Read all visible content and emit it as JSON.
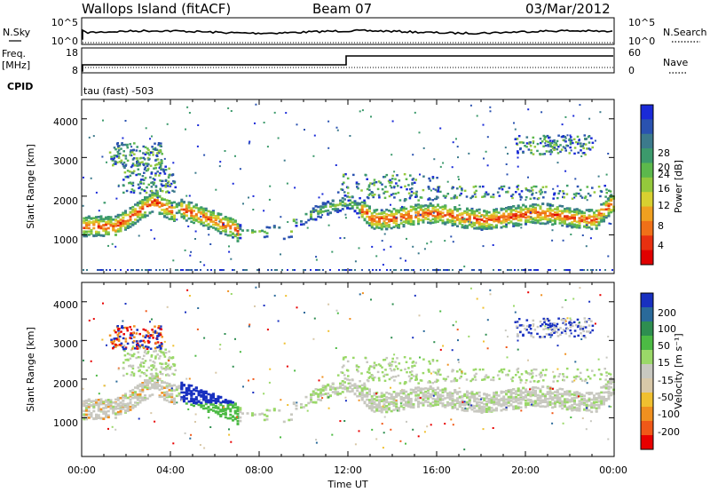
{
  "header": {
    "station": "Wallops Island (fitACF)",
    "beam": "Beam 07",
    "date": "03/Mar/2012"
  },
  "strips": {
    "nsky_label": "N.Sky",
    "nsearch_label": "N.Search",
    "nsky_ticks": [
      "10^5",
      "10^0"
    ],
    "nsearch_ticks": [
      "10^5",
      "10^0"
    ],
    "freq_label": "Freq.",
    "freq_unit": "[MHz]",
    "freq_ticks": [
      "18",
      "8"
    ],
    "nave_label": "Nave",
    "nave_ticks": [
      "60",
      "0"
    ],
    "cpid_label": "CPID",
    "cpid_value": "tau (fast) -503"
  },
  "chart_data": [
    {
      "type": "heatmap",
      "name": "power",
      "ylabel": "Slant Range [km]",
      "yticks": [
        "4000",
        "3000",
        "2000",
        "1000"
      ],
      "ylim": [
        0,
        4500
      ],
      "xlim": [
        0,
        24
      ],
      "colorbar": {
        "label": "Power [dB]",
        "ticks": [
          "28",
          "24",
          "20",
          "16",
          "12",
          "8",
          "4"
        ],
        "colors": [
          "#1a2ad8",
          "#2a52b0",
          "#3c7a8c",
          "#3c9a6c",
          "#5cb84c",
          "#94c83c",
          "#d8d030",
          "#f0a020",
          "#f07018",
          "#e83010",
          "#e00000"
        ]
      }
    },
    {
      "type": "heatmap",
      "name": "velocity",
      "ylabel": "Slant Range [km]",
      "yticks": [
        "4000",
        "3000",
        "2000",
        "1000"
      ],
      "ylim": [
        0,
        4500
      ],
      "xlim": [
        0,
        24
      ],
      "colorbar": {
        "label": "Velocity [m s⁻¹]",
        "ticks": [
          "200",
          "100",
          "50",
          "15",
          "-15",
          "-50",
          "-100",
          "-200"
        ],
        "colors": [
          "#1830c0",
          "#2a6a9a",
          "#2e8e50",
          "#4cba44",
          "#9ad868",
          "#c8c8c0",
          "#d8c8a8",
          "#f0c030",
          "#f09020",
          "#f05818",
          "#e80000"
        ]
      }
    }
  ],
  "xaxis": {
    "ticks": [
      "00:00",
      "04:00",
      "08:00",
      "12:00",
      "16:00",
      "20:00",
      "00:00"
    ],
    "label": "Time UT"
  }
}
